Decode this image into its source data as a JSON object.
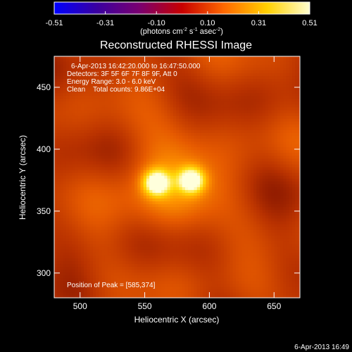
{
  "chart_data": {
    "type": "heatmap",
    "title": "Reconstructed RHESSI Image",
    "colorbar": {
      "ticks": [
        "-0.51",
        "-0.31",
        "-0.10",
        "0.10",
        "0.31",
        "0.51"
      ],
      "min": -0.51,
      "max": 0.51,
      "unit_main": "(photons cm",
      "unit_sup1": "-2",
      "unit_mid": " s",
      "unit_sup2": "-1",
      "unit_mid2": " asec",
      "unit_sup3": "-2",
      "unit_end": ")",
      "colors": [
        "#0000ff",
        "#3a00a0",
        "#7a0070",
        "#c80000",
        "#ff6a00",
        "#ffd000",
        "#ffffd0"
      ]
    },
    "xlabel": "Heliocentric X (arcsec)",
    "ylabel": "Heliocentric Y (arcsec)",
    "xlim": [
      480,
      670
    ],
    "ylim": [
      280,
      475
    ],
    "x_ticks": [
      500,
      550,
      600,
      650
    ],
    "y_ticks": [
      300,
      350,
      400,
      450
    ],
    "x_tick_labels": [
      "500",
      "550",
      "600",
      "650"
    ],
    "y_tick_labels": [
      "300",
      "350",
      "400",
      "450"
    ],
    "sources": [
      {
        "x": 558,
        "y": 372,
        "sigma": 7,
        "peak": 0.51
      },
      {
        "x": 585,
        "y": 374,
        "sigma": 7,
        "peak": 0.51
      }
    ],
    "background_level": 0.17,
    "annotations": {
      "time_range": "6-Apr-2013 16:42:20.000 to 16:47:50.000",
      "detectors": "Detectors: 3F 5F 6F 7F 8F 9F, Att 0",
      "energy": "Energy Range: 3.0 - 6.0 keV",
      "clean": "Clean    Total counts: 9.86E+04",
      "peak_position": "Position of Peak = [585,374]"
    },
    "timestamp": "6-Apr-2013 16:49"
  }
}
